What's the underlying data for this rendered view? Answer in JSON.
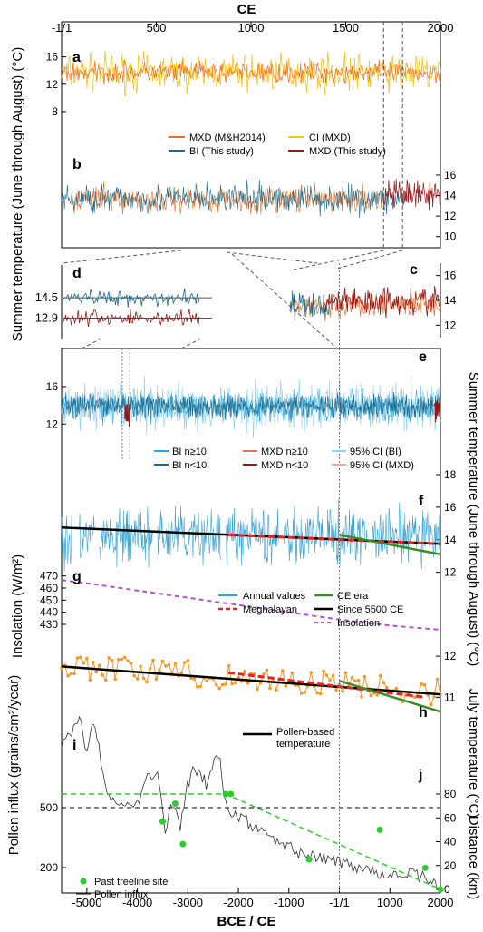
{
  "top_axis": {
    "title": "CE",
    "ticks": [
      {
        "label": "-1/1",
        "value": 0
      },
      {
        "label": "500",
        "value": 500
      },
      {
        "label": "1000",
        "value": 1000
      },
      {
        "label": "1500",
        "value": 1500
      },
      {
        "label": "2000",
        "value": 2000
      }
    ]
  },
  "bottom_axis": {
    "title": "BCE / CE",
    "ticks": [
      {
        "label": "-5000",
        "value": -5000
      },
      {
        "label": "-4000",
        "value": -4000
      },
      {
        "label": "-3000",
        "value": -3000
      },
      {
        "label": "-2000",
        "value": -2000
      },
      {
        "label": "-1000",
        "value": -1000
      },
      {
        "label": "-1/1",
        "value": 0
      },
      {
        "label": "1000",
        "value": 1000
      },
      {
        "label": "2000",
        "value": 2000
      }
    ]
  },
  "y_axis_titles": {
    "left_summer": "Summer temperature (June through August) (°C)",
    "right_summer": "Summer temperature (June through August) (°C)",
    "insolation": "Insolation (W/m²)",
    "july": "July temperature (°C)",
    "pollen": "Pollen influx (grains/cm²/year)",
    "distance": "Distance (km)"
  },
  "panel_labels": {
    "a": "a",
    "b": "b",
    "c": "c",
    "d": "d",
    "e": "e",
    "f": "f",
    "g": "g",
    "h": "h",
    "i": "i",
    "j": "j"
  },
  "legends": {
    "ab": [
      "MXD (M&H2014)",
      "CI (MXD)",
      "BI (This study)",
      "MXD (This study)"
    ],
    "e": [
      "BI n≥10",
      "MXD n≥10",
      "95% CI (BI)",
      "BI n<10",
      "MXD n<10",
      "95% CI (MXD)"
    ],
    "fg": [
      "Annual values",
      "CE era",
      "Meghalayan",
      "Since 5500 CE",
      "Insolation"
    ],
    "h": "Pollen-based temperature",
    "j": [
      "Past treeline site",
      "Pollen influx"
    ]
  },
  "colors": {
    "mxd_orange": "#f26b1d",
    "ci_yellow": "#f5c518",
    "bi_blue": "#1b6a8a",
    "mxd_red": "#9b1414",
    "bi_light": "#36a3d6",
    "ci_bi_light": "#8fd4f0",
    "ci_mxd_pink": "#f5a3a3",
    "trend_red": "#e8231e",
    "trend_green": "#3d8b28",
    "trend_black": "#000000",
    "insolation_purple": "#b056c8",
    "pollen_temp_orange": "#f29a2e",
    "treeline_green": "#2ecc2e"
  },
  "chart_data": [
    {
      "panel": "a",
      "type": "line",
      "x_range": [
        0,
        2000
      ],
      "ylim": [
        6,
        19
      ],
      "yticks": [
        8,
        12,
        16
      ],
      "series": [
        {
          "name": "CI (MXD)",
          "kind": "band",
          "mean": 13.7,
          "halfwidth": 2.1
        },
        {
          "name": "MXD (M&H2014)",
          "kind": "annual",
          "mean": 13.7,
          "amplitude": 1.2
        }
      ]
    },
    {
      "panel": "b",
      "type": "line",
      "x_range": [
        0,
        2000
      ],
      "ylim": [
        9,
        17.5
      ],
      "yticks": [
        10,
        12,
        14,
        16
      ],
      "series": [
        {
          "name": "BI (This study)",
          "kind": "annual",
          "x_start": 0,
          "x_end": 1850,
          "mean": 13.7,
          "amplitude": 1.1
        },
        {
          "name": "MXD (This study)",
          "kind": "annual",
          "x_start": 1700,
          "x_end": 2000,
          "mean": 14.0,
          "amplitude": 1.1
        }
      ]
    },
    {
      "panel": "c",
      "type": "line",
      "x_range": [
        1700,
        2000
      ],
      "ylim": [
        11,
        17
      ],
      "yticks": [
        12,
        14,
        16
      ],
      "series": [
        {
          "name": "BI (This study)",
          "kind": "annual",
          "x_start": 1700,
          "x_end": 1780,
          "mean": 13.5,
          "amplitude": 0.9
        },
        {
          "name": "MXD (This study)",
          "kind": "annual",
          "x_start": 1770,
          "x_end": 2000,
          "mean": 14.0,
          "amplitude": 0.9
        }
      ]
    },
    {
      "panel": "d",
      "type": "line",
      "x_range": [
        -4300,
        -4150
      ],
      "reference_lines": [
        14.5,
        12.9
      ],
      "yticks": [
        12.9,
        14.5
      ],
      "series": [
        {
          "name": "BI",
          "kind": "annual",
          "mean": 14.5,
          "amplitude": 0.5
        },
        {
          "name": "MXD",
          "kind": "annual",
          "mean": 12.9,
          "amplitude": 0.5
        }
      ]
    },
    {
      "panel": "e",
      "type": "line",
      "x_range": [
        -5500,
        2000
      ],
      "ylim": [
        10,
        19
      ],
      "yticks": [
        12,
        16
      ],
      "series": [
        {
          "name": "95% CI (BI)",
          "kind": "band",
          "mean": 13.9,
          "halfwidth": 2.0
        },
        {
          "name": "BI n≥10",
          "kind": "annual",
          "mean": 13.9,
          "amplitude": 1.2
        },
        {
          "name": "BI n<10",
          "kind": "annual",
          "mean": 13.9,
          "amplitude": 1.0
        },
        {
          "name": "MXD n<10",
          "kind": "annual",
          "x_start": -4250,
          "x_end": -4150,
          "mean": 13.0,
          "amplitude": 1.0
        },
        {
          "name": "MXD n≥10",
          "kind": "annual",
          "x_start": 1900,
          "x_end": 2000,
          "mean": 13.8,
          "amplitude": 1.0
        }
      ]
    },
    {
      "panel": "f",
      "type": "line",
      "x_range": [
        -5500,
        2000
      ],
      "ylim": [
        11.2,
        18
      ],
      "yticks": [
        12,
        14,
        16,
        18
      ],
      "series": [
        {
          "name": "Annual values",
          "kind": "annual",
          "mean": 14.2,
          "amplitude": 1.3
        },
        {
          "name": "Since 5500 CE",
          "kind": "trend",
          "x": [
            -5500,
            2000
          ],
          "y": [
            14.75,
            13.75
          ]
        },
        {
          "name": "Meghalayan",
          "kind": "trend",
          "x": [
            -2200,
            2000
          ],
          "y": [
            14.3,
            13.75
          ]
        },
        {
          "name": "CE era",
          "kind": "trend",
          "x": [
            0,
            2000
          ],
          "y": [
            14.3,
            13.1
          ]
        }
      ]
    },
    {
      "panel": "g",
      "type": "line",
      "x_range": [
        -5500,
        2000
      ],
      "ylim": [
        421,
        475
      ],
      "yticks": [
        430,
        440,
        450,
        460,
        470
      ],
      "series": [
        {
          "name": "Insolation",
          "x": [
            -5500,
            -5000,
            -4000,
            -3000,
            -2000,
            -1000,
            0,
            1000,
            2000
          ],
          "y": [
            466.5,
            464,
            458,
            452,
            446,
            440,
            434,
            429,
            425.5
          ]
        }
      ]
    },
    {
      "panel": "h",
      "type": "line",
      "x_range": [
        -5500,
        2000
      ],
      "ylim": [
        10.3,
        12.4
      ],
      "yticks": [
        11,
        12
      ],
      "series": [
        {
          "name": "Pollen-based temperature",
          "kind": "points",
          "mean": 11.5,
          "amplitude": 0.3
        },
        {
          "name": "Since 5500 CE",
          "kind": "trend",
          "x": [
            -5500,
            2000
          ],
          "y": [
            11.75,
            11.07
          ]
        },
        {
          "name": "Meghalayan",
          "kind": "trend",
          "x": [
            -2200,
            1700
          ],
          "y": [
            11.6,
            11.0
          ]
        },
        {
          "name": "CE era",
          "kind": "trend",
          "x": [
            0,
            2000
          ],
          "y": [
            11.4,
            10.65
          ]
        }
      ]
    },
    {
      "panel": "i",
      "type": "line",
      "x_range": [
        -5500,
        2000
      ],
      "yticks": [
        200,
        500
      ],
      "series": [
        {
          "name": "Pollen influx",
          "x": [
            -5500,
            -5300,
            -5150,
            -5000,
            -4900,
            -4800,
            -4600,
            -4400,
            -4000,
            -3800,
            -3600,
            -3450,
            -3300,
            -3150,
            -3050,
            -2900,
            -2600,
            -2400,
            -2250,
            -2100,
            -1800,
            -1500,
            -1000,
            -500,
            0,
            500,
            1000,
            1500,
            1800,
            1900,
            2000
          ],
          "y": [
            820,
            880,
            950,
            780,
            920,
            850,
            550,
            520,
            510,
            650,
            700,
            400,
            530,
            380,
            560,
            700,
            610,
            780,
            520,
            460,
            430,
            360,
            300,
            250,
            230,
            190,
            170,
            160,
            150,
            100,
            60
          ]
        }
      ]
    },
    {
      "panel": "j",
      "type": "scatter",
      "x_range": [
        -5500,
        2000
      ],
      "ylim": [
        0,
        80
      ],
      "yticks": [
        0,
        20,
        40,
        60,
        80
      ],
      "series": [
        {
          "name": "Past treeline site",
          "x": [
            -3500,
            -3250,
            -3100,
            -2250,
            -2150,
            -600,
            800,
            1700,
            2000
          ],
          "y": [
            57,
            72,
            38,
            80,
            80,
            25,
            50,
            18,
            0
          ]
        },
        {
          "name": "treeline trend",
          "kind": "dashed",
          "x": [
            -5500,
            -2250,
            2000
          ],
          "y": [
            80,
            80,
            0
          ]
        }
      ]
    }
  ]
}
